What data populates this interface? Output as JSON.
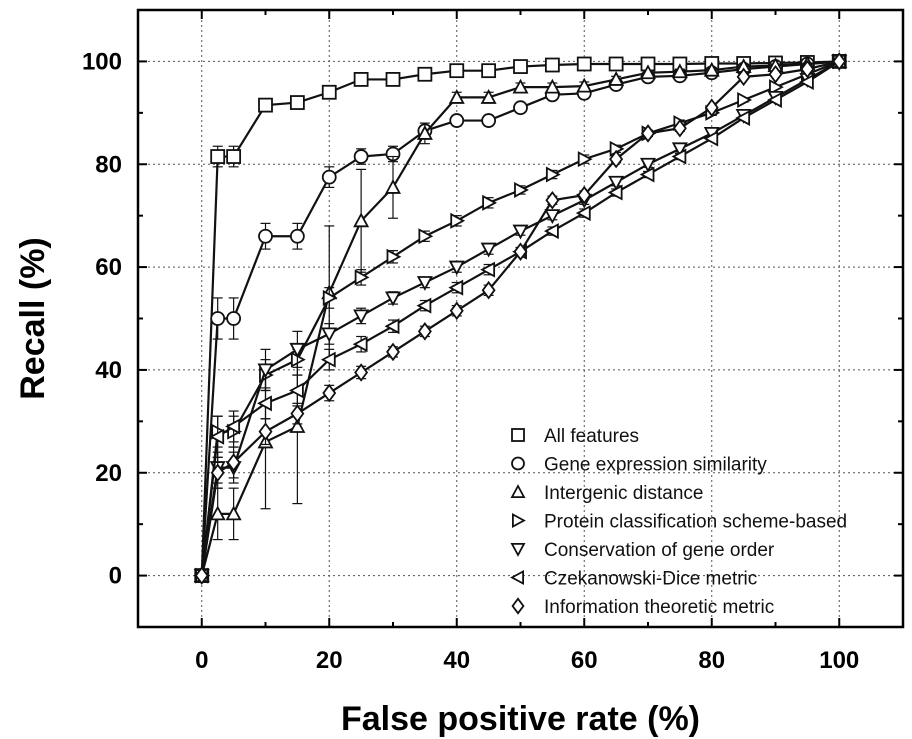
{
  "chart_data": {
    "type": "line",
    "xlabel": "False positive rate (%)",
    "ylabel": "Recall (%)",
    "xlim": [
      -10,
      110
    ],
    "ylim": [
      -10,
      110
    ],
    "xticks": [
      0,
      20,
      40,
      60,
      80,
      100
    ],
    "yticks": [
      0,
      20,
      40,
      60,
      80,
      100
    ],
    "grid": true,
    "legend_position": "bottom-right",
    "series": [
      {
        "name": "All features",
        "marker": "square",
        "points": [
          [
            0,
            0
          ],
          [
            2.5,
            81.5
          ],
          [
            5,
            81.5
          ],
          [
            10,
            91.5
          ],
          [
            15,
            92
          ],
          [
            20,
            94
          ],
          [
            25,
            96.5
          ],
          [
            30,
            96.5
          ],
          [
            35,
            97.5
          ],
          [
            40,
            98.2
          ],
          [
            45,
            98.2
          ],
          [
            50,
            99
          ],
          [
            55,
            99.3
          ],
          [
            60,
            99.5
          ],
          [
            65,
            99.5
          ],
          [
            70,
            99.5
          ],
          [
            75,
            99.5
          ],
          [
            80,
            99.6
          ],
          [
            85,
            99.6
          ],
          [
            90,
            99.7
          ],
          [
            95,
            99.8
          ],
          [
            100,
            100
          ]
        ],
        "errors": [
          0,
          2,
          2,
          1,
          1,
          1,
          0.5,
          0.5,
          0.5,
          0.3,
          0.3,
          0.3,
          0.2,
          0.2,
          0.2,
          0.2,
          0.2,
          0.2,
          0.2,
          0.2,
          0.1,
          0
        ]
      },
      {
        "name": "Gene expression similarity",
        "marker": "circle",
        "points": [
          [
            0,
            0
          ],
          [
            2.5,
            50
          ],
          [
            5,
            50
          ],
          [
            10,
            66
          ],
          [
            15,
            66
          ],
          [
            20,
            77.5
          ],
          [
            25,
            81.5
          ],
          [
            30,
            82
          ],
          [
            35,
            86.5
          ],
          [
            40,
            88.5
          ],
          [
            45,
            88.5
          ],
          [
            50,
            91
          ],
          [
            55,
            93.5
          ],
          [
            60,
            93.8
          ],
          [
            65,
            95.5
          ],
          [
            70,
            97
          ],
          [
            75,
            97.2
          ],
          [
            80,
            97.8
          ],
          [
            85,
            98.5
          ],
          [
            90,
            99
          ],
          [
            95,
            99.5
          ],
          [
            100,
            100
          ]
        ],
        "errors": [
          0,
          4,
          4,
          2.5,
          2.5,
          2,
          1.5,
          1.5,
          1,
          1,
          1,
          0.8,
          0.8,
          0.8,
          0.6,
          0.5,
          0.5,
          0.4,
          0.3,
          0.3,
          0.2,
          0
        ]
      },
      {
        "name": "Intergenic distance",
        "marker": "triangle-up",
        "points": [
          [
            0,
            0
          ],
          [
            2.5,
            12
          ],
          [
            5,
            12
          ],
          [
            10,
            26
          ],
          [
            15,
            29
          ],
          [
            20,
            55
          ],
          [
            25,
            69
          ],
          [
            30,
            75.5
          ],
          [
            35,
            86
          ],
          [
            40,
            93
          ],
          [
            45,
            93
          ],
          [
            50,
            95
          ],
          [
            55,
            95
          ],
          [
            60,
            95.2
          ],
          [
            65,
            96.5
          ],
          [
            70,
            97.8
          ],
          [
            75,
            98
          ],
          [
            80,
            98.3
          ],
          [
            85,
            99
          ],
          [
            90,
            99.2
          ],
          [
            95,
            99.5
          ],
          [
            100,
            100
          ]
        ],
        "errors": [
          0,
          5,
          5,
          13,
          15,
          13,
          10,
          6,
          2,
          1,
          1,
          0.8,
          0.8,
          0.8,
          0.6,
          0.5,
          0.5,
          0.4,
          0.3,
          0.3,
          0.2,
          0
        ]
      },
      {
        "name": "Protein classification scheme-based",
        "marker": "triangle-right",
        "points": [
          [
            0,
            0
          ],
          [
            2.5,
            28
          ],
          [
            5,
            28
          ],
          [
            10,
            39
          ],
          [
            15,
            42
          ],
          [
            20,
            54
          ],
          [
            25,
            58
          ],
          [
            30,
            62
          ],
          [
            35,
            66
          ],
          [
            40,
            69
          ],
          [
            45,
            72.5
          ],
          [
            50,
            75
          ],
          [
            55,
            78
          ],
          [
            60,
            81
          ],
          [
            65,
            83
          ],
          [
            70,
            86
          ],
          [
            75,
            88
          ],
          [
            80,
            90
          ],
          [
            85,
            92.5
          ],
          [
            90,
            95
          ],
          [
            95,
            97.5
          ],
          [
            100,
            100
          ]
        ],
        "errors": [
          0,
          3,
          3,
          3,
          3,
          2,
          1.5,
          1.2,
          1,
          1,
          1,
          0.8,
          0.8,
          0.8,
          0.7,
          0.6,
          0.6,
          0.5,
          0.4,
          0.3,
          0.2,
          0
        ]
      },
      {
        "name": "Conservation of gene order",
        "marker": "triangle-down",
        "points": [
          [
            0,
            0
          ],
          [
            2.5,
            21
          ],
          [
            5,
            21
          ],
          [
            10,
            40
          ],
          [
            15,
            44
          ],
          [
            20,
            47
          ],
          [
            25,
            50.5
          ],
          [
            30,
            54
          ],
          [
            35,
            57
          ],
          [
            40,
            60
          ],
          [
            45,
            63.5
          ],
          [
            50,
            67
          ],
          [
            55,
            70
          ],
          [
            60,
            73
          ],
          [
            65,
            76.5
          ],
          [
            70,
            80
          ],
          [
            75,
            83
          ],
          [
            80,
            86
          ],
          [
            85,
            89.5
          ],
          [
            90,
            93
          ],
          [
            95,
            96.5
          ],
          [
            100,
            100
          ]
        ],
        "errors": [
          0,
          3,
          3,
          4,
          3.5,
          2,
          1.5,
          1.2,
          1,
          1,
          1,
          0.8,
          0.8,
          0.8,
          0.7,
          0.6,
          0.6,
          0.5,
          0.4,
          0.3,
          0.2,
          0
        ]
      },
      {
        "name": "Czekanowski-Dice metric",
        "marker": "triangle-left",
        "points": [
          [
            0,
            0
          ],
          [
            2.5,
            27
          ],
          [
            5,
            29
          ],
          [
            10,
            33.5
          ],
          [
            15,
            36
          ],
          [
            20,
            42
          ],
          [
            25,
            45
          ],
          [
            30,
            48.5
          ],
          [
            35,
            52.5
          ],
          [
            40,
            56
          ],
          [
            45,
            59.5
          ],
          [
            50,
            63
          ],
          [
            55,
            67
          ],
          [
            60,
            70.5
          ],
          [
            65,
            74.5
          ],
          [
            70,
            78
          ],
          [
            75,
            81.5
          ],
          [
            80,
            85
          ],
          [
            85,
            89
          ],
          [
            90,
            92.5
          ],
          [
            95,
            96
          ],
          [
            100,
            100
          ]
        ],
        "errors": [
          0,
          4,
          3,
          3,
          3,
          2,
          1.5,
          1.2,
          1,
          1,
          1,
          0.8,
          0.8,
          0.8,
          0.7,
          0.6,
          0.6,
          0.5,
          0.4,
          0.3,
          0.2,
          0
        ]
      },
      {
        "name": "Information theoretic metric",
        "marker": "diamond",
        "points": [
          [
            0,
            0
          ],
          [
            2.5,
            20
          ],
          [
            5,
            22
          ],
          [
            10,
            28
          ],
          [
            15,
            31.5
          ],
          [
            20,
            35.5
          ],
          [
            25,
            39.5
          ],
          [
            30,
            43.5
          ],
          [
            35,
            47.5
          ],
          [
            40,
            51.5
          ],
          [
            45,
            55.5
          ],
          [
            50,
            63
          ],
          [
            55,
            73
          ],
          [
            60,
            74
          ],
          [
            65,
            81
          ],
          [
            70,
            86
          ],
          [
            75,
            87
          ],
          [
            80,
            91
          ],
          [
            85,
            97
          ],
          [
            90,
            97.5
          ],
          [
            95,
            98.5
          ],
          [
            100,
            100
          ]
        ],
        "errors": [
          0,
          3,
          3,
          2.5,
          2,
          1.5,
          1.2,
          1,
          1,
          1,
          1,
          0.8,
          0.8,
          0.8,
          0.7,
          0.6,
          0.6,
          0.5,
          0.4,
          0.3,
          0.2,
          0
        ]
      }
    ]
  }
}
